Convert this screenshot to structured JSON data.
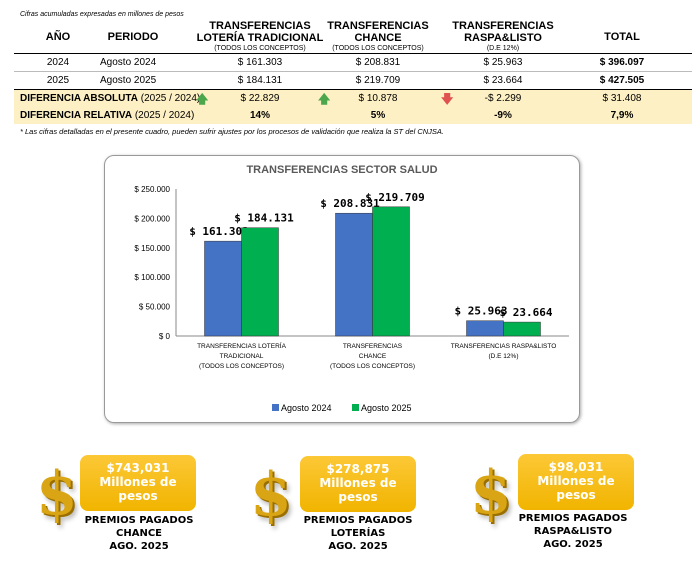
{
  "note": "Cifras acumuladas expresadas en millones de pesos",
  "headers": {
    "anio": "AÑO",
    "periodo": "PERIODO",
    "lot1": "TRANSFERENCIAS",
    "lot2": "LOTERÍA TRADICIONAL",
    "lot3": "(TODOS LOS CONCEPTOS)",
    "ch1": "TRANSFERENCIAS",
    "ch2": "CHANCE",
    "ch3": "(TODOS LOS CONCEPTOS)",
    "rp1": "TRANSFERENCIAS",
    "rp2": "RASPA&LISTO",
    "rp3": "(D.E 12%)",
    "total": "TOTAL"
  },
  "rows": [
    {
      "anio": "2024",
      "periodo": "Agosto 2024",
      "lot": "$ 161.303",
      "chance": "$ 208.831",
      "raspa": "$ 25.963",
      "total": "$ 396.097"
    },
    {
      "anio": "2025",
      "periodo": "Agosto 2025",
      "lot": "$ 184.131",
      "chance": "$ 219.709",
      "raspa": "$ 23.664",
      "total": "$ 427.505"
    }
  ],
  "dif_abs": {
    "label": "DIFERENCIA ABSOLUTA",
    "sub": "(2025 / 2024)",
    "lot": "$ 22.829",
    "chance": "$ 10.878",
    "raspa": "-$ 2.299",
    "total": "$ 31.408"
  },
  "dif_rel": {
    "label": "DIFERENCIA RELATIVA",
    "sub": "(2025 / 2024)",
    "lot": "14%",
    "chance": "5%",
    "raspa": "-9%",
    "total": "7,9%"
  },
  "footnote": "* Las cifras detalladas en el presente cuadro, pueden sufrir ajustes por los procesos de validación que realiza la ST del CNJSA.",
  "colors": {
    "up": "#4ca64c",
    "down": "#e0524f",
    "s1": "#4472c4",
    "s2": "#00b050"
  },
  "chart_data": {
    "type": "bar",
    "title": "TRANSFERENCIAS SECTOR SALUD",
    "categories": [
      [
        "TRANSFERENCIAS LOTERÍA",
        "TRADICIONAL",
        "(TODOS LOS CONCEPTOS)"
      ],
      [
        "TRANSFERENCIAS",
        "CHANCE",
        "(TODOS LOS CONCEPTOS)"
      ],
      [
        "TRANSFERENCIAS RASPA&LISTO",
        "(D.E 12%)"
      ]
    ],
    "series": [
      {
        "name": "Agosto 2024",
        "values": [
          161303,
          208831,
          25963
        ],
        "labels": [
          "$ 161.303",
          "$ 208.831",
          "$ 25.963"
        ]
      },
      {
        "name": "Agosto 2025",
        "values": [
          184131,
          219709,
          23664
        ],
        "labels": [
          "$ 184.131",
          "$ 219.709",
          "$ 23.664"
        ]
      }
    ],
    "ylim": [
      0,
      250000
    ],
    "yticks": [
      "$ 0",
      "$ 50.000",
      "$ 100.000",
      "$ 150.000",
      "$ 200.000",
      "$ 250.000"
    ],
    "legend": "bottom"
  },
  "premios": [
    {
      "amount": "$743,031",
      "unit1": "Millones de",
      "unit2": "pesos",
      "c1": "PREMIOS PAGADOS",
      "c2": "CHANCE",
      "c3": "AGO. 2025"
    },
    {
      "amount": "$278,875",
      "unit1": "Millones de",
      "unit2": "pesos",
      "c1": "PREMIOS PAGADOS",
      "c2": "LOTERÍAS",
      "c3": "AGO. 2025"
    },
    {
      "amount": "$98,031",
      "unit1": "Millones de",
      "unit2": "pesos",
      "c1": "PREMIOS PAGADOS",
      "c2": "RASPA&LISTO",
      "c3": "AGO. 2025"
    }
  ]
}
